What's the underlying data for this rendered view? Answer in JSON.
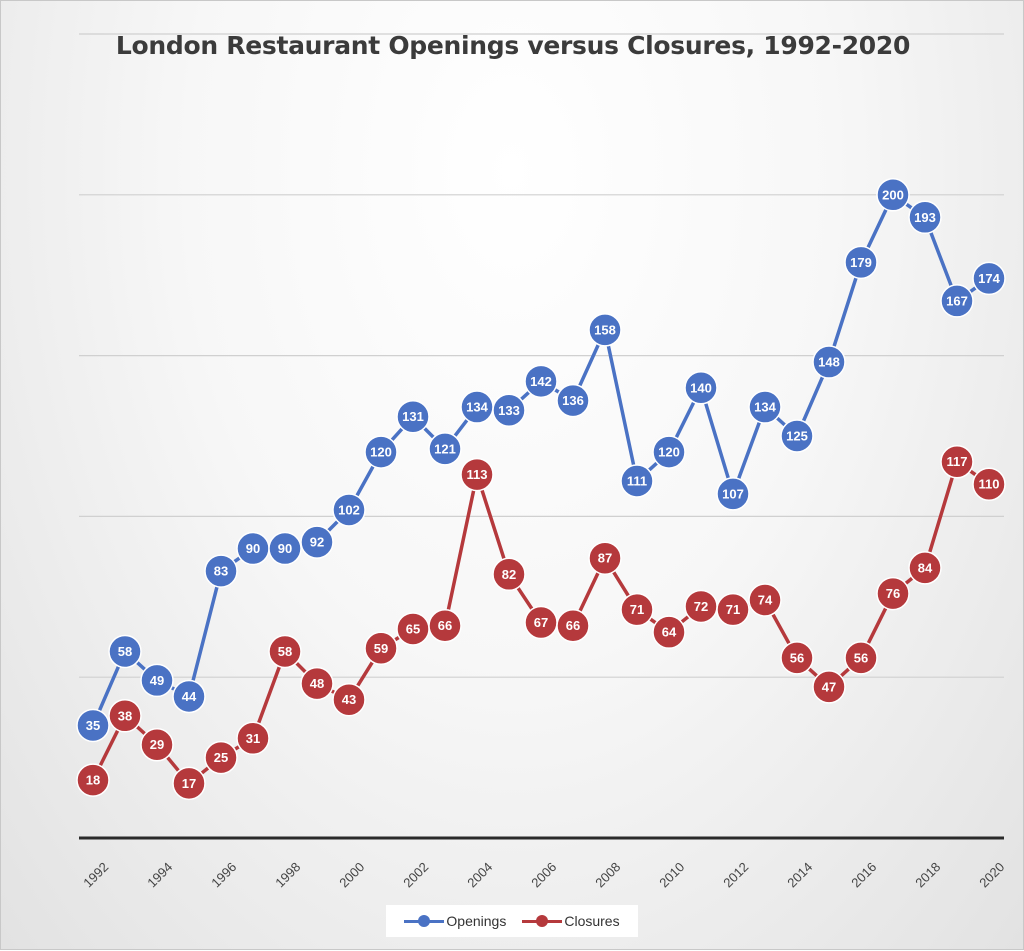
{
  "chart_data": {
    "type": "line",
    "title": "London Restaurant Openings versus Closures, 1992-2020",
    "xlabel": "",
    "ylabel": "",
    "x": [
      1992,
      1993,
      1994,
      1995,
      1996,
      1997,
      1998,
      1999,
      2000,
      2001,
      2002,
      2003,
      2004,
      2005,
      2006,
      2007,
      2008,
      2009,
      2010,
      2011,
      2012,
      2013,
      2014,
      2015,
      2016,
      2017,
      2018,
      2019,
      2020
    ],
    "x_tick_labels": [
      "1992",
      "1994",
      "1996",
      "1998",
      "2000",
      "2002",
      "2004",
      "2006",
      "2008",
      "2010",
      "2012",
      "2014",
      "2016",
      "2018",
      "2020"
    ],
    "ylim": [
      0,
      250
    ],
    "y_axis_labels_shown": false,
    "grid": true,
    "data_labels": true,
    "legend_position": "bottom",
    "series": [
      {
        "name": "Openings",
        "color": "#4a72c4",
        "values": [
          35,
          58,
          49,
          44,
          83,
          90,
          90,
          92,
          102,
          120,
          131,
          121,
          134,
          133,
          142,
          136,
          158,
          111,
          120,
          140,
          107,
          134,
          125,
          148,
          179,
          200,
          193,
          167,
          174
        ]
      },
      {
        "name": "Closures",
        "color": "#b5393c",
        "values": [
          18,
          38,
          29,
          17,
          25,
          31,
          58,
          48,
          43,
          59,
          65,
          66,
          113,
          82,
          67,
          66,
          87,
          71,
          64,
          72,
          71,
          74,
          56,
          47,
          56,
          76,
          84,
          117,
          110
        ]
      }
    ]
  }
}
